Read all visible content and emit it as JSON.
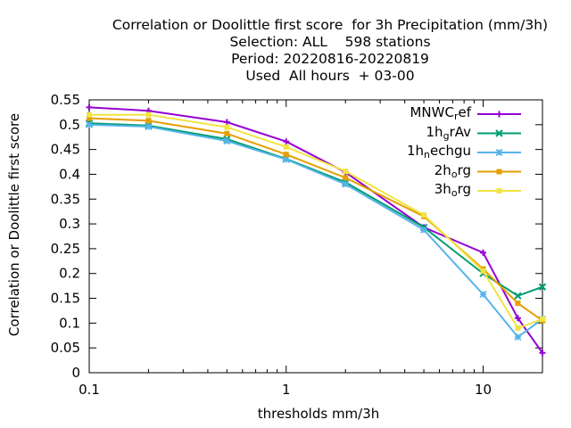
{
  "titles": [
    "Correlation or Doolittle first score  for 3h Precipitation (mm/3h)",
    "Selection: ALL    598 stations",
    "Period: 20220816-20220819",
    "Used  All hours  + 03-00"
  ],
  "chart_data": {
    "type": "line",
    "xlabel": "thresholds mm/3h",
    "ylabel": "Correlation or Doolittle first score",
    "xscale": "log",
    "xlim": [
      0.1,
      20
    ],
    "ylim": [
      0,
      0.55
    ],
    "xticks": [
      0.1,
      1,
      10
    ],
    "xtick_labels": [
      "0.1",
      "1",
      "10"
    ],
    "yticks": [
      "0",
      "0.05",
      "0.1",
      "0.15",
      "0.2",
      "0.25",
      "0.3",
      "0.35",
      "0.4",
      "0.45",
      "0.5",
      "0.55"
    ],
    "grid": false,
    "legend_position": "top-right",
    "x": [
      0.1,
      0.2,
      0.5,
      1,
      2,
      5,
      10,
      15,
      20
    ],
    "series": [
      {
        "name": "MNWC_ref",
        "label_main": "MNWC",
        "label_sub": "r",
        "label_rest": "ef",
        "color": "#9400d3",
        "marker": "plus",
        "values": [
          0.535,
          0.528,
          0.505,
          0.466,
          0.404,
          0.293,
          0.242,
          0.11,
          0.04
        ]
      },
      {
        "name": "1h_grAv",
        "label_main": "1h",
        "label_sub": "g",
        "label_rest": "rAv",
        "color": "#009e73",
        "marker": "x",
        "values": [
          0.503,
          0.498,
          0.471,
          0.431,
          0.384,
          0.293,
          0.2,
          0.155,
          0.173
        ]
      },
      {
        "name": "1h_nechgu",
        "label_main": "1h",
        "label_sub": "n",
        "label_rest": "echgu",
        "color": "#56b4e9",
        "marker": "star",
        "values": [
          0.5,
          0.496,
          0.467,
          0.43,
          0.38,
          0.288,
          0.158,
          0.072,
          0.108
        ]
      },
      {
        "name": "2h_org",
        "label_main": "2h",
        "label_sub": "o",
        "label_rest": "rg",
        "color": "#e69f00",
        "marker": "box",
        "values": [
          0.513,
          0.508,
          0.482,
          0.44,
          0.393,
          0.315,
          0.209,
          0.14,
          0.105
        ]
      },
      {
        "name": "3h_org",
        "label_main": "3h",
        "label_sub": "o",
        "label_rest": "rg",
        "color": "#f0e442",
        "marker": "box",
        "values": [
          0.52,
          0.52,
          0.495,
          0.455,
          0.406,
          0.318,
          0.205,
          0.09,
          0.108
        ]
      }
    ]
  }
}
